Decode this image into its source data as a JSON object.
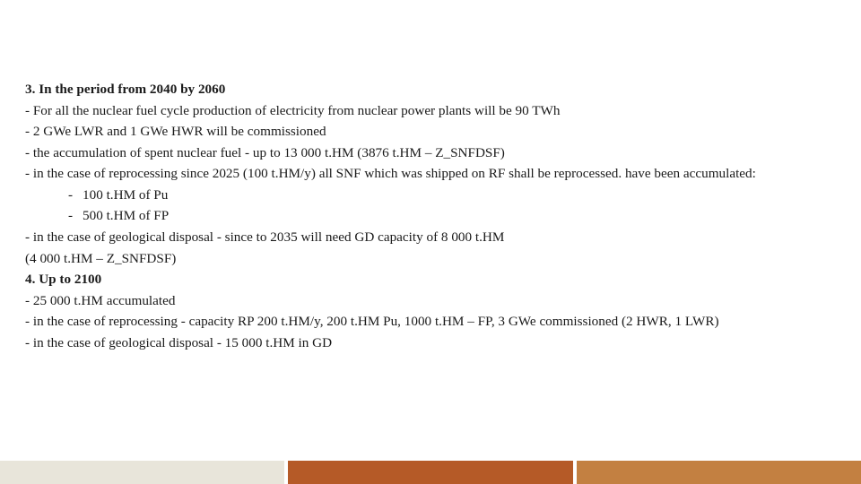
{
  "section3": {
    "title": "3. In the period from 2040 by 2060",
    "lines": [
      "- For all the nuclear fuel cycle production of electricity from nuclear power plants will be 90 TWh",
      "- 2 GWe LWR and 1 GWe HWR will be commissioned",
      "- the accumulation of spent nuclear fuel - up to 13 000 t.HM (3876 t.HM – Z_SNFDSF)",
      "- in the case of reprocessing since 2025 (100 t.HM/y) all SNF which was shipped on RF shall be reprocessed. have been accumulated:"
    ],
    "sub_bullets": [
      "100 t.HM of Pu",
      "500 t.HM of FP"
    ],
    "lines2": [
      "- in the case of geological disposal - since to 2035 will need GD capacity of 8 000 t.HM",
      "(4 000 t.HM – Z_SNFDSF)"
    ]
  },
  "section4": {
    "title": "4. Up to 2100",
    "lines": [
      "- 25 000 t.HM accumulated",
      "- in the case of reprocessing -  capacity RP 200 t.HM/y, 200 t.HM Pu, 1000 t.HM – FP, 3 GWe commissioned (2 HWR, 1 LWR)",
      "- in the case of geological disposal - 15 000 t.HM in GD"
    ]
  },
  "footer_colors": {
    "c1": "#e8e5da",
    "c2": "#b55a27",
    "c3": "#c38041"
  }
}
